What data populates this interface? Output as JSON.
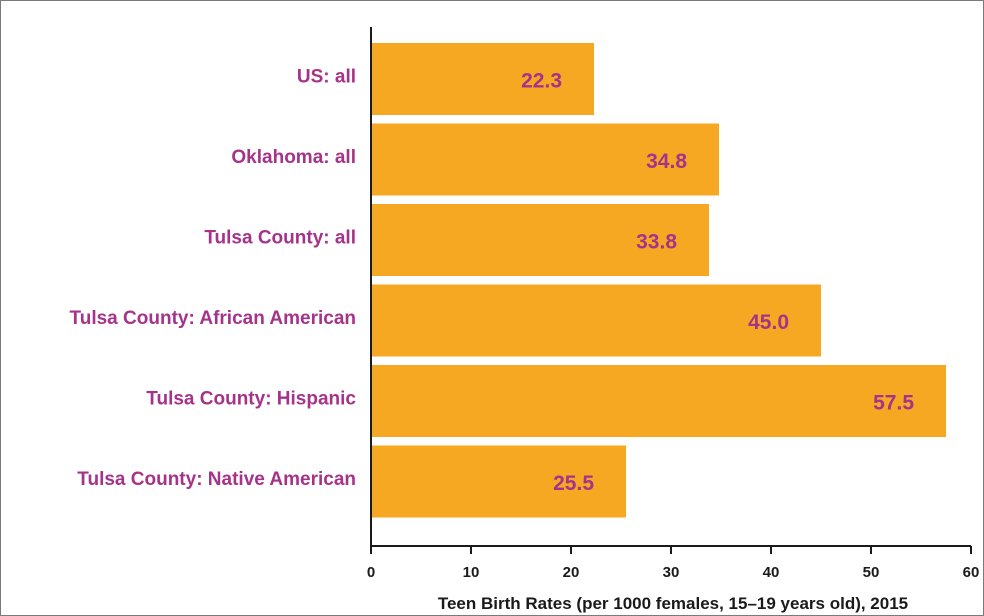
{
  "chart_data": {
    "type": "bar",
    "orientation": "horizontal",
    "categories": [
      "US: all",
      "Oklahoma: all",
      "Tulsa County: all",
      "Tulsa County: African American",
      "Tulsa County: Hispanic",
      "Tulsa County: Native American"
    ],
    "values": [
      22.3,
      34.8,
      33.8,
      45.0,
      57.5,
      25.5
    ],
    "value_labels": [
      "22.3",
      "34.8",
      "33.8",
      "45.0",
      "57.5",
      "25.5"
    ],
    "xlabel": "Teen Birth Rates (per 1000 females, 15–19 years old), 2015",
    "ylabel": "",
    "title": "",
    "xlim": [
      0,
      60
    ],
    "xticks": [
      0,
      10,
      20,
      30,
      40,
      50,
      60
    ],
    "grid": false,
    "colors": {
      "bar": "#f7a823",
      "label": "#a6338a",
      "axis": "#1a1a1a"
    }
  }
}
